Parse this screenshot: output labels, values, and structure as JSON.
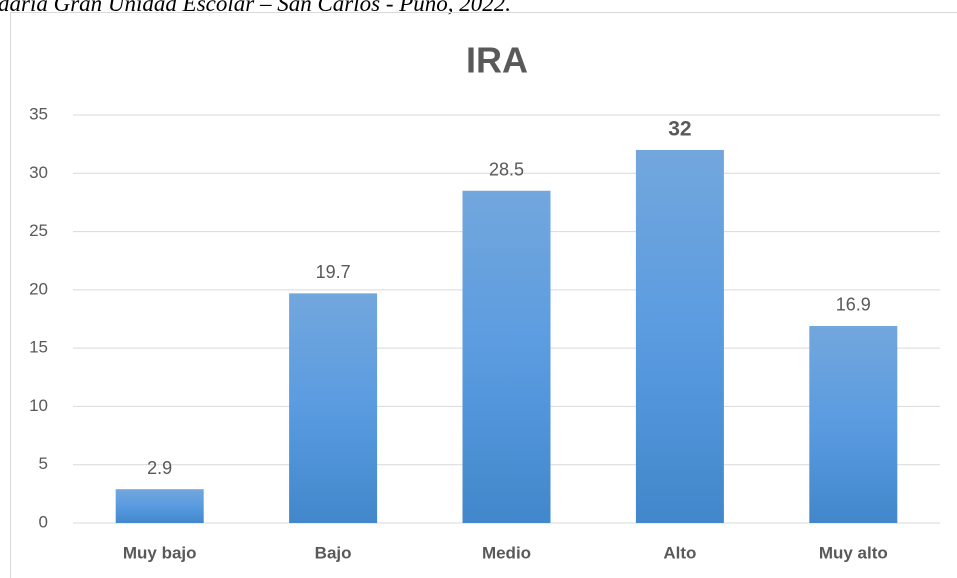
{
  "caption": "daria Gran Unidad Escolar – San Carlos - Puno, 2022.",
  "chart_data": {
    "type": "bar",
    "title": "IRA",
    "categories": [
      "Muy bajo",
      "Bajo",
      "Medio",
      "Alto",
      "Muy alto"
    ],
    "values": [
      2.9,
      19.7,
      28.5,
      32,
      16.9
    ],
    "color": "#5b9bd5",
    "ylim": [
      0,
      35
    ],
    "yticks": [
      0,
      5,
      10,
      15,
      20,
      25,
      30,
      35
    ],
    "grid": true
  }
}
